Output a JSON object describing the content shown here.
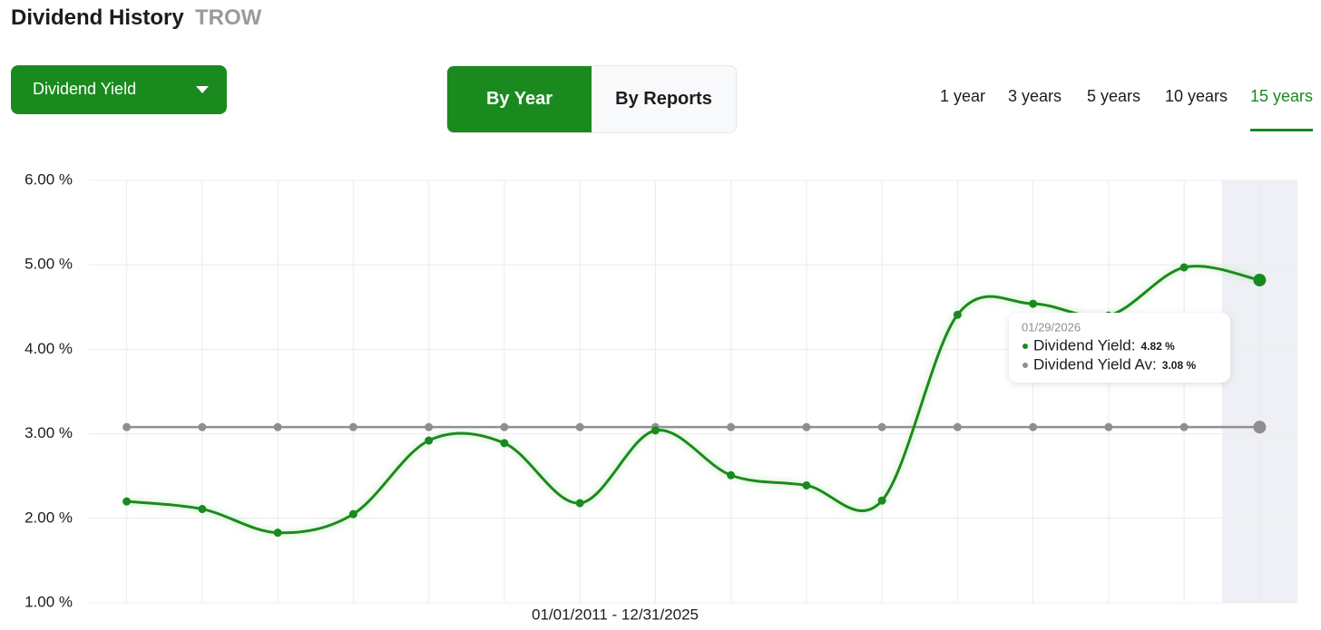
{
  "header": {
    "title": "Dividend History",
    "ticker": "TROW"
  },
  "controls": {
    "dropdown": "Dividend Yield",
    "toggle": [
      "By Year",
      "By Reports"
    ],
    "ranges": [
      "1 year",
      "3 years",
      "5 years",
      "10 years",
      "15 years"
    ]
  },
  "chart_data": {
    "type": "line",
    "x_label": "01/01/2011 - 12/31/2025",
    "categories": [
      null,
      null,
      null,
      null,
      null,
      null,
      null,
      null,
      null,
      null,
      null,
      null,
      null,
      null,
      null,
      null
    ],
    "series": [
      {
        "name": "Dividend Yield",
        "color": "#1a8a1f",
        "values": [
          2.2,
          2.11,
          1.83,
          2.05,
          2.92,
          2.89,
          2.18,
          3.04,
          2.51,
          2.39,
          2.21,
          4.41,
          4.54,
          4.4,
          4.97,
          4.82
        ]
      },
      {
        "name": "Dividend Yield Av",
        "color": "#8e8e93",
        "values": [
          3.08,
          3.08,
          3.08,
          3.08,
          3.08,
          3.08,
          3.08,
          3.08,
          3.08,
          3.08,
          3.08,
          3.08,
          3.08,
          3.08,
          3.08,
          3.08
        ]
      }
    ],
    "ylim": [
      1,
      6
    ],
    "yticks": [
      {
        "value": 1,
        "label": "1.00 %"
      },
      {
        "value": 2,
        "label": "2.00 %"
      },
      {
        "value": 3,
        "label": "3.00 %"
      },
      {
        "value": 4,
        "label": "4.00 %"
      },
      {
        "value": 5,
        "label": "5.00 %"
      },
      {
        "value": 6,
        "label": "6.00 %"
      }
    ],
    "grid": true,
    "tooltip": {
      "date": "01/29/2026",
      "rows": [
        {
          "label": "Dividend Yield:",
          "value": "4.82 %"
        },
        {
          "label": "Dividend Yield Av:",
          "value": "3.08 %"
        }
      ]
    }
  }
}
